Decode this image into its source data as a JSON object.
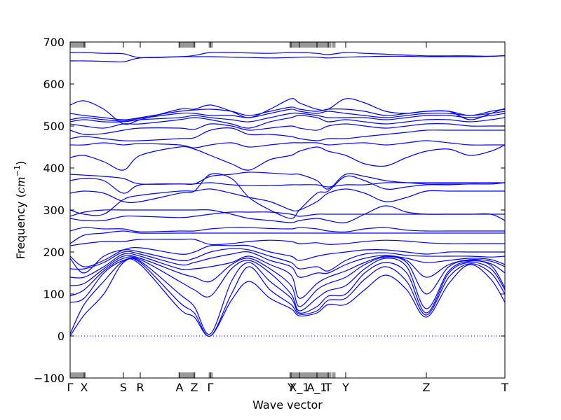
{
  "chart_data": {
    "type": "line",
    "title": "",
    "xlabel": "Wave vector",
    "ylabel": {
      "prefix": "Frequency (",
      "unit_base": "cm",
      "unit_exp": "−1",
      "suffix": ")"
    },
    "ylim": [
      -100,
      700
    ],
    "yticks": [
      -100,
      0,
      100,
      200,
      300,
      400,
      500,
      600,
      700
    ],
    "xlim": [
      0,
      620
    ],
    "grid": false,
    "legend": "none",
    "line_color": "#0000ff",
    "zero_line": {
      "y": 0,
      "style": "dotted",
      "color": "#0000ff"
    },
    "high_symmetry_points": [
      {
        "label": "Γ",
        "x": 0
      },
      {
        "label": "X",
        "x": 20
      },
      {
        "label": "S",
        "x": 76
      },
      {
        "label": "R",
        "x": 100
      },
      {
        "label": "A",
        "x": 156
      },
      {
        "label": "Z",
        "x": 177
      },
      {
        "label": "Γ",
        "x": 200
      },
      {
        "label": "Y",
        "x": 315
      },
      {
        "label": "X_1",
        "x": 327
      },
      {
        "label": "A_1",
        "x": 352
      },
      {
        "label": "T",
        "x": 368
      },
      {
        "label": "Y",
        "x": 393
      },
      {
        "label": "Z",
        "x": 508
      },
      {
        "label": "T",
        "x": 620
      }
    ],
    "tick_clusters": [
      [
        0,
        22
      ],
      [
        155,
        178
      ],
      [
        198,
        203
      ],
      [
        313,
        352
      ],
      [
        352,
        372
      ],
      [
        374,
        378
      ]
    ],
    "x": [
      0,
      20,
      48,
      76,
      100,
      156,
      177,
      200,
      230,
      255,
      285,
      315,
      327,
      352,
      368,
      393,
      420,
      450,
      480,
      508,
      540,
      570,
      600,
      620
    ],
    "series": [
      {
        "values": [
          0,
          50,
          100,
          175,
          170,
          65,
          45,
          0,
          85,
          130,
          90,
          65,
          48,
          55,
          75,
          75,
          110,
          145,
          110,
          45,
          125,
          170,
          135,
          80
        ]
      },
      {
        "values": [
          5,
          75,
          130,
          178,
          175,
          80,
          55,
          0,
          100,
          165,
          110,
          75,
          52,
          60,
          85,
          90,
          135,
          165,
          130,
          50,
          140,
          172,
          150,
          100
        ]
      },
      {
        "values": [
          80,
          90,
          150,
          180,
          178,
          100,
          70,
          5,
          130,
          175,
          130,
          90,
          55,
          70,
          95,
          100,
          150,
          175,
          150,
          55,
          150,
          175,
          160,
          110
        ]
      },
      {
        "values": [
          95,
          110,
          155,
          185,
          182,
          130,
          110,
          95,
          160,
          180,
          150,
          100,
          60,
          90,
          108,
          120,
          160,
          185,
          165,
          65,
          155,
          178,
          168,
          115
        ]
      },
      {
        "values": [
          120,
          125,
          160,
          190,
          185,
          150,
          140,
          130,
          170,
          185,
          160,
          120,
          70,
          110,
          125,
          140,
          170,
          188,
          175,
          100,
          165,
          180,
          172,
          150
        ]
      },
      {
        "values": [
          140,
          140,
          165,
          195,
          190,
          160,
          160,
          165,
          175,
          190,
          170,
          145,
          90,
          125,
          140,
          155,
          175,
          190,
          180,
          140,
          170,
          182,
          178,
          165
        ]
      },
      {
        "values": [
          160,
          160,
          175,
          200,
          195,
          170,
          175,
          185,
          195,
          200,
          180,
          165,
          140,
          150,
          150,
          170,
          185,
          192,
          185,
          175,
          180,
          185,
          182,
          170
        ]
      },
      {
        "values": [
          185,
          150,
          190,
          205,
          200,
          180,
          185,
          200,
          208,
          205,
          190,
          175,
          160,
          165,
          155,
          180,
          195,
          198,
          192,
          190,
          190,
          190,
          188,
          190
        ]
      },
      {
        "values": [
          190,
          165,
          180,
          205,
          210,
          195,
          200,
          215,
          215,
          215,
          200,
          190,
          180,
          190,
          195,
          200,
          205,
          205,
          200,
          195,
          200,
          200,
          200,
          200
        ]
      },
      {
        "values": [
          215,
          220,
          225,
          225,
          230,
          230,
          230,
          218,
          220,
          225,
          228,
          225,
          220,
          222,
          218,
          220,
          225,
          228,
          226,
          222,
          220,
          220,
          220,
          220
        ]
      },
      {
        "values": [
          220,
          240,
          245,
          250,
          245,
          245,
          245,
          245,
          245,
          245,
          245,
          245,
          245,
          245,
          245,
          245,
          245,
          245,
          245,
          245,
          245,
          245,
          245,
          245
        ]
      },
      {
        "values": [
          250,
          258,
          255,
          255,
          248,
          250,
          250,
          255,
          258,
          258,
          256,
          255,
          258,
          255,
          250,
          248,
          255,
          258,
          252,
          250,
          250,
          250,
          250,
          250
        ]
      },
      {
        "values": [
          280,
          275,
          275,
          285,
          285,
          282,
          285,
          290,
          295,
          295,
          295,
          290,
          285,
          290,
          290,
          290,
          290,
          290,
          290,
          290,
          290,
          290,
          290,
          275
        ]
      },
      {
        "values": [
          285,
          295,
          300,
          300,
          300,
          300,
          300,
          300,
          290,
          280,
          275,
          270,
          275,
          280,
          275,
          270,
          290,
          310,
          295,
          290,
          290,
          290,
          290,
          290
        ]
      },
      {
        "values": [
          300,
          290,
          290,
          325,
          335,
          345,
          345,
          350,
          340,
          330,
          320,
          300,
          300,
          320,
          340,
          350,
          340,
          320,
          330,
          345,
          345,
          345,
          345,
          345
        ]
      },
      {
        "values": [
          340,
          345,
          340,
          320,
          320,
          340,
          345,
          385,
          375,
          330,
          300,
          280,
          300,
          340,
          345,
          380,
          370,
          350,
          355,
          360,
          360,
          362,
          362,
          365
        ]
      },
      {
        "values": [
          370,
          375,
          370,
          340,
          360,
          362,
          362,
          380,
          385,
          390,
          388,
          385,
          385,
          370,
          350,
          385,
          380,
          370,
          365,
          362,
          362,
          362,
          362,
          365
        ]
      },
      {
        "values": [
          385,
          383,
          380,
          375,
          362,
          362,
          362,
          365,
          360,
          358,
          358,
          360,
          360,
          360,
          355,
          360,
          360,
          365,
          365,
          365,
          365,
          365,
          365,
          365
        ]
      },
      {
        "values": [
          425,
          430,
          415,
          395,
          430,
          450,
          445,
          430,
          410,
          395,
          420,
          430,
          440,
          450,
          440,
          430,
          410,
          405,
          425,
          440,
          445,
          430,
          440,
          455
        ]
      },
      {
        "values": [
          455,
          455,
          460,
          455,
          458,
          455,
          448,
          455,
          460,
          450,
          455,
          460,
          460,
          460,
          455,
          458,
          460,
          455,
          460,
          465,
          460,
          455,
          455,
          455
        ]
      },
      {
        "values": [
          470,
          475,
          470,
          465,
          465,
          470,
          472,
          490,
          495,
          480,
          480,
          475,
          470,
          465,
          470,
          470,
          475,
          480,
          485,
          490,
          490,
          490,
          490,
          490
        ]
      },
      {
        "values": [
          490,
          480,
          482,
          490,
          495,
          495,
          492,
          505,
          500,
          490,
          495,
          500,
          495,
          490,
          500,
          505,
          500,
          495,
          500,
          505,
          505,
          500,
          500,
          500
        ]
      },
      {
        "values": [
          505,
          500,
          495,
          505,
          505,
          515,
          520,
          515,
          505,
          495,
          510,
          520,
          525,
          520,
          510,
          515,
          510,
          505,
          510,
          515,
          515,
          510,
          515,
          520
        ]
      },
      {
        "values": [
          510,
          515,
          510,
          510,
          515,
          520,
          525,
          520,
          515,
          510,
          520,
          530,
          530,
          525,
          520,
          520,
          520,
          515,
          520,
          525,
          525,
          520,
          525,
          530
        ]
      },
      {
        "values": [
          515,
          520,
          515,
          512,
          518,
          530,
          530,
          525,
          525,
          520,
          530,
          540,
          535,
          530,
          535,
          530,
          525,
          520,
          525,
          530,
          530,
          525,
          530,
          535
        ]
      },
      {
        "values": [
          530,
          525,
          520,
          515,
          520,
          535,
          538,
          540,
          535,
          525,
          535,
          545,
          540,
          535,
          540,
          540,
          535,
          525,
          530,
          535,
          535,
          525,
          535,
          540
        ]
      },
      {
        "values": [
          550,
          560,
          540,
          505,
          515,
          540,
          540,
          550,
          535,
          520,
          540,
          565,
          555,
          540,
          540,
          565,
          555,
          535,
          530,
          535,
          535,
          515,
          530,
          542
        ]
      },
      {
        "values": [
          655,
          655,
          654,
          653,
          662,
          665,
          665,
          665,
          664,
          663,
          662,
          663,
          664,
          664,
          662,
          664,
          665,
          666,
          666,
          665,
          665,
          665,
          666,
          667
        ]
      },
      {
        "values": [
          675,
          675,
          673,
          672,
          663,
          665,
          668,
          675,
          675,
          674,
          673,
          675,
          675,
          673,
          670,
          675,
          673,
          671,
          669,
          667,
          667,
          667,
          666,
          668
        ]
      }
    ]
  }
}
